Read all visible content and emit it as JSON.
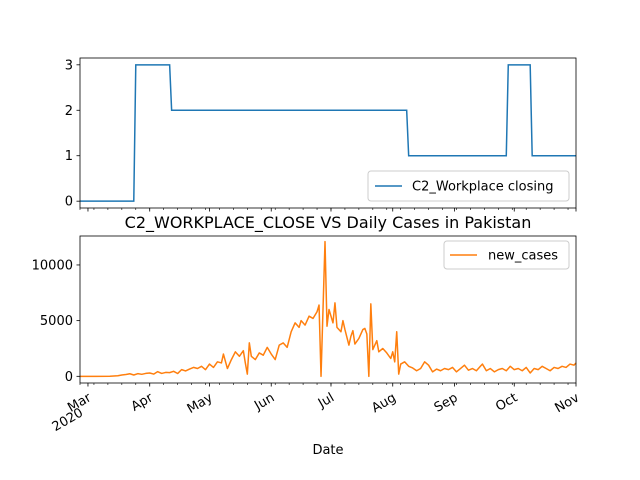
{
  "chart_data": [
    {
      "type": "line",
      "title": "",
      "xlabel": "",
      "ylabel": "",
      "x_range": [
        "2020-02-26",
        "2020-11-01"
      ],
      "ylim": [
        -0.15,
        3.15
      ],
      "yticks": [
        0,
        1,
        2,
        3
      ],
      "grid": false,
      "legend": "lower-right",
      "series": [
        {
          "name": "C2_Workplace closing",
          "color": "#1f77b4",
          "step": true,
          "points": [
            [
              "2020-02-26",
              0
            ],
            [
              "2020-03-24",
              0
            ],
            [
              "2020-03-25",
              3
            ],
            [
              "2020-04-11",
              3
            ],
            [
              "2020-04-12",
              2
            ],
            [
              "2020-08-08",
              2
            ],
            [
              "2020-08-09",
              1
            ],
            [
              "2020-09-27",
              1
            ],
            [
              "2020-09-28",
              3
            ],
            [
              "2020-10-09",
              3
            ],
            [
              "2020-10-10",
              1
            ],
            [
              "2020-11-01",
              1
            ]
          ]
        }
      ]
    },
    {
      "type": "line",
      "title": "C2_WORKPLACE_CLOSE VS Daily Cases in Pakistan",
      "xlabel": "Date",
      "ylabel": "",
      "x_range": [
        "2020-02-26",
        "2020-11-01"
      ],
      "ylim": [
        -600,
        12600
      ],
      "yticks": [
        0,
        5000,
        10000
      ],
      "xticks": [
        {
          "date": "2020-03-01",
          "label": "Mar",
          "sublabel": "2020"
        },
        {
          "date": "2020-04-01",
          "label": "Apr"
        },
        {
          "date": "2020-05-01",
          "label": "May"
        },
        {
          "date": "2020-06-01",
          "label": "Jun"
        },
        {
          "date": "2020-07-01",
          "label": "Jul"
        },
        {
          "date": "2020-08-01",
          "label": "Aug"
        },
        {
          "date": "2020-09-01",
          "label": "Sep"
        },
        {
          "date": "2020-10-01",
          "label": "Oct"
        },
        {
          "date": "2020-11-01",
          "label": "Nov"
        }
      ],
      "grid": false,
      "legend": "top-right",
      "series": [
        {
          "name": "new_cases",
          "color": "#ff7f0e",
          "points": [
            [
              "2020-02-26",
              0
            ],
            [
              "2020-03-05",
              0
            ],
            [
              "2020-03-12",
              10
            ],
            [
              "2020-03-16",
              50
            ],
            [
              "2020-03-18",
              120
            ],
            [
              "2020-03-20",
              160
            ],
            [
              "2020-03-22",
              230
            ],
            [
              "2020-03-24",
              120
            ],
            [
              "2020-03-26",
              240
            ],
            [
              "2020-03-28",
              180
            ],
            [
              "2020-03-30",
              260
            ],
            [
              "2020-04-01",
              300
            ],
            [
              "2020-04-03",
              200
            ],
            [
              "2020-04-05",
              420
            ],
            [
              "2020-04-07",
              260
            ],
            [
              "2020-04-09",
              350
            ],
            [
              "2020-04-11",
              330
            ],
            [
              "2020-04-13",
              450
            ],
            [
              "2020-04-15",
              250
            ],
            [
              "2020-04-17",
              600
            ],
            [
              "2020-04-19",
              480
            ],
            [
              "2020-04-21",
              650
            ],
            [
              "2020-04-23",
              800
            ],
            [
              "2020-04-25",
              700
            ],
            [
              "2020-04-27",
              900
            ],
            [
              "2020-04-29",
              600
            ],
            [
              "2020-05-01",
              1100
            ],
            [
              "2020-05-03",
              800
            ],
            [
              "2020-05-05",
              1300
            ],
            [
              "2020-05-07",
              1200
            ],
            [
              "2020-05-08",
              2000
            ],
            [
              "2020-05-10",
              700
            ],
            [
              "2020-05-12",
              1500
            ],
            [
              "2020-05-14",
              2200
            ],
            [
              "2020-05-16",
              1800
            ],
            [
              "2020-05-18",
              2300
            ],
            [
              "2020-05-19",
              1200
            ],
            [
              "2020-05-20",
              200
            ],
            [
              "2020-05-21",
              3000
            ],
            [
              "2020-05-22",
              1800
            ],
            [
              "2020-05-24",
              1500
            ],
            [
              "2020-05-26",
              2100
            ],
            [
              "2020-05-28",
              1900
            ],
            [
              "2020-05-30",
              2600
            ],
            [
              "2020-06-01",
              2000
            ],
            [
              "2020-06-03",
              1500
            ],
            [
              "2020-06-05",
              2800
            ],
            [
              "2020-06-07",
              3000
            ],
            [
              "2020-06-09",
              2600
            ],
            [
              "2020-06-11",
              4000
            ],
            [
              "2020-06-13",
              4800
            ],
            [
              "2020-06-15",
              4400
            ],
            [
              "2020-06-16",
              5000
            ],
            [
              "2020-06-18",
              4600
            ],
            [
              "2020-06-20",
              5400
            ],
            [
              "2020-06-22",
              5200
            ],
            [
              "2020-06-24",
              5800
            ],
            [
              "2020-06-25",
              6400
            ],
            [
              "2020-06-26",
              0
            ],
            [
              "2020-06-28",
              12100
            ],
            [
              "2020-06-29",
              4500
            ],
            [
              "2020-06-30",
              6000
            ],
            [
              "2020-07-01",
              5400
            ],
            [
              "2020-07-02",
              4800
            ],
            [
              "2020-07-03",
              6600
            ],
            [
              "2020-07-04",
              4400
            ],
            [
              "2020-07-06",
              4000
            ],
            [
              "2020-07-07",
              5000
            ],
            [
              "2020-07-08",
              4200
            ],
            [
              "2020-07-10",
              2800
            ],
            [
              "2020-07-11",
              3600
            ],
            [
              "2020-07-12",
              4100
            ],
            [
              "2020-07-13",
              2900
            ],
            [
              "2020-07-15",
              3400
            ],
            [
              "2020-07-17",
              4200
            ],
            [
              "2020-07-18",
              4300
            ],
            [
              "2020-07-19",
              3800
            ],
            [
              "2020-07-20",
              0
            ],
            [
              "2020-07-21",
              6500
            ],
            [
              "2020-07-22",
              2400
            ],
            [
              "2020-07-24",
              3200
            ],
            [
              "2020-07-25",
              2200
            ],
            [
              "2020-07-27",
              2500
            ],
            [
              "2020-07-29",
              2100
            ],
            [
              "2020-07-31",
              1600
            ],
            [
              "2020-08-01",
              2200
            ],
            [
              "2020-08-02",
              1300
            ],
            [
              "2020-08-03",
              4000
            ],
            [
              "2020-08-04",
              200
            ],
            [
              "2020-08-05",
              1100
            ],
            [
              "2020-08-07",
              1300
            ],
            [
              "2020-08-09",
              900
            ],
            [
              "2020-08-11",
              750
            ],
            [
              "2020-08-13",
              500
            ],
            [
              "2020-08-15",
              700
            ],
            [
              "2020-08-17",
              1300
            ],
            [
              "2020-08-19",
              1000
            ],
            [
              "2020-08-21",
              400
            ],
            [
              "2020-08-23",
              650
            ],
            [
              "2020-08-25",
              500
            ],
            [
              "2020-08-27",
              700
            ],
            [
              "2020-08-29",
              600
            ],
            [
              "2020-08-31",
              800
            ],
            [
              "2020-09-02",
              400
            ],
            [
              "2020-09-04",
              700
            ],
            [
              "2020-09-06",
              1000
            ],
            [
              "2020-09-08",
              550
            ],
            [
              "2020-09-10",
              700
            ],
            [
              "2020-09-12",
              500
            ],
            [
              "2020-09-14",
              900
            ],
            [
              "2020-09-15",
              1100
            ],
            [
              "2020-09-17",
              500
            ],
            [
              "2020-09-19",
              700
            ],
            [
              "2020-09-21",
              400
            ],
            [
              "2020-09-23",
              600
            ],
            [
              "2020-09-25",
              700
            ],
            [
              "2020-09-27",
              500
            ],
            [
              "2020-09-29",
              900
            ],
            [
              "2020-10-01",
              600
            ],
            [
              "2020-10-03",
              700
            ],
            [
              "2020-10-05",
              500
            ],
            [
              "2020-10-07",
              800
            ],
            [
              "2020-10-09",
              300
            ],
            [
              "2020-10-11",
              700
            ],
            [
              "2020-10-13",
              600
            ],
            [
              "2020-10-15",
              900
            ],
            [
              "2020-10-17",
              700
            ],
            [
              "2020-10-19",
              500
            ],
            [
              "2020-10-21",
              800
            ],
            [
              "2020-10-23",
              700
            ],
            [
              "2020-10-25",
              900
            ],
            [
              "2020-10-27",
              800
            ],
            [
              "2020-10-29",
              1100
            ],
            [
              "2020-10-31",
              1000
            ],
            [
              "2020-11-01",
              1200
            ]
          ]
        }
      ]
    }
  ]
}
